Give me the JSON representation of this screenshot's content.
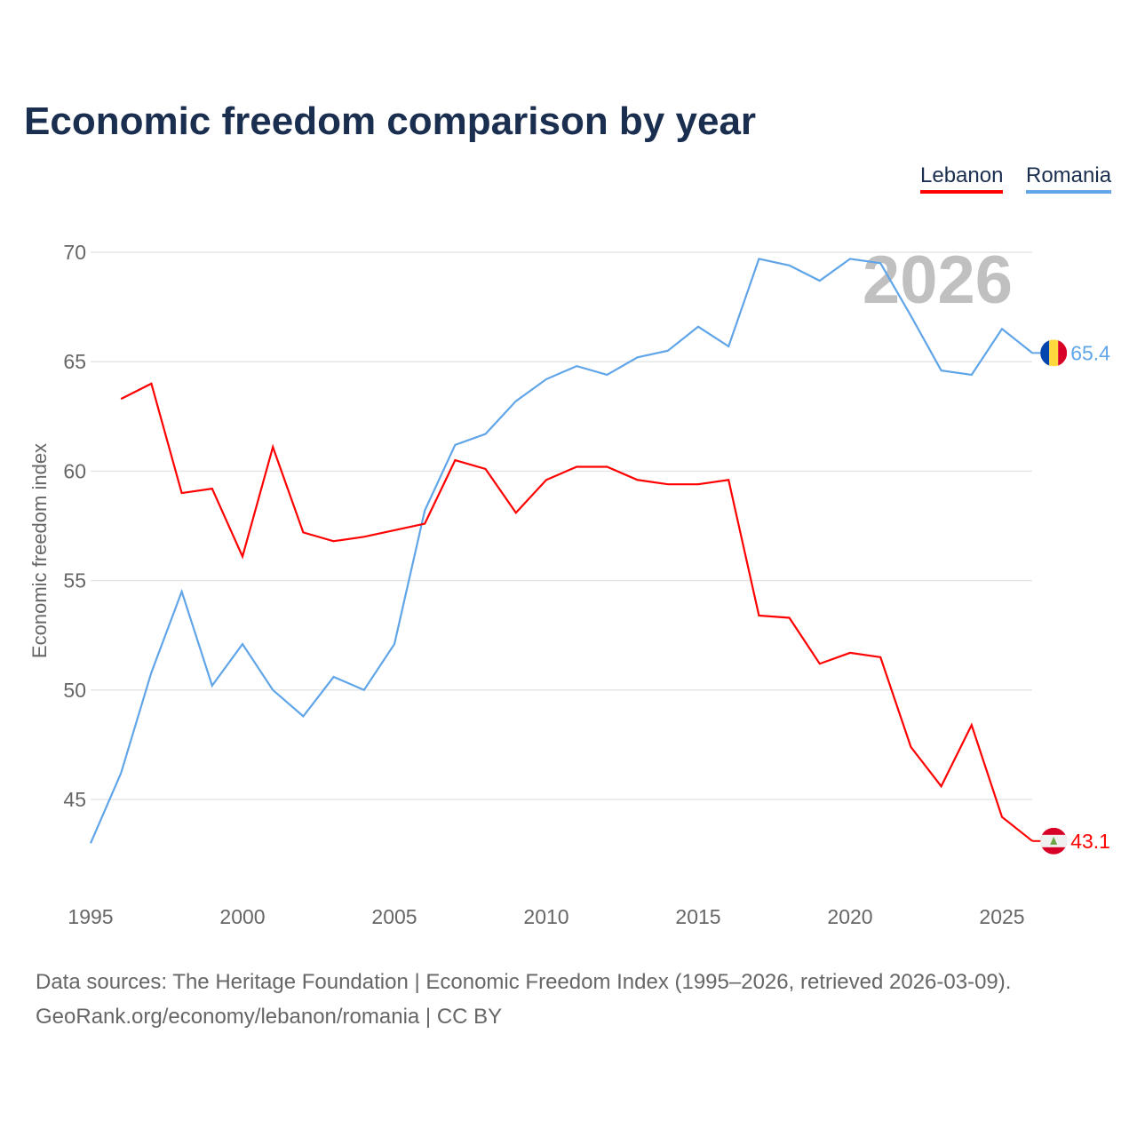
{
  "title": "Economic freedom comparison by year",
  "legend": {
    "lebanon": "Lebanon",
    "romania": "Romania"
  },
  "colors": {
    "lebanon": "#ff0000",
    "romania": "#60a5e8"
  },
  "year_watermark": "2026",
  "source_line1": "Data sources: The Heritage Foundation | Economic Freedom Index (1995–2026, retrieved 2026-03-09).",
  "source_line2": "GeoRank.org/economy/lebanon/romania | CC BY",
  "chart_data": {
    "type": "line",
    "ylabel": "Economic freedom index",
    "xlim": [
      1995,
      2026
    ],
    "ylim": [
      42,
      70
    ],
    "yticks": [
      45,
      50,
      55,
      60,
      65,
      70
    ],
    "xticks": [
      1995,
      2000,
      2005,
      2010,
      2015,
      2020,
      2025
    ],
    "grid": true,
    "legend": "top-right",
    "series": [
      {
        "name": "Romania",
        "end_label": "65.4",
        "x": [
          1995,
          1996,
          1997,
          1998,
          1999,
          2000,
          2001,
          2002,
          2003,
          2004,
          2005,
          2006,
          2007,
          2008,
          2009,
          2010,
          2011,
          2012,
          2013,
          2014,
          2015,
          2016,
          2017,
          2018,
          2019,
          2020,
          2021,
          2022,
          2023,
          2024,
          2025,
          2026
        ],
        "values": [
          43.0,
          46.2,
          50.8,
          54.5,
          50.2,
          52.1,
          50.0,
          48.8,
          50.6,
          50.0,
          52.1,
          58.2,
          61.2,
          61.7,
          63.2,
          64.2,
          64.8,
          64.4,
          65.2,
          65.5,
          66.6,
          65.7,
          69.7,
          69.4,
          68.7,
          69.7,
          69.5,
          67.1,
          64.6,
          64.4,
          66.5,
          65.4
        ]
      },
      {
        "name": "Lebanon",
        "end_label": "43.1",
        "x": [
          1996,
          1997,
          1998,
          1999,
          2000,
          2001,
          2002,
          2003,
          2004,
          2005,
          2006,
          2007,
          2008,
          2009,
          2010,
          2011,
          2012,
          2013,
          2014,
          2015,
          2016,
          2017,
          2018,
          2019,
          2020,
          2021,
          2022,
          2023,
          2024,
          2025,
          2026
        ],
        "values": [
          63.3,
          64.0,
          59.0,
          59.2,
          56.1,
          61.1,
          57.2,
          56.8,
          57.0,
          57.3,
          57.6,
          60.5,
          60.1,
          58.1,
          59.6,
          60.2,
          60.2,
          59.6,
          59.4,
          59.4,
          59.6,
          53.4,
          53.3,
          51.2,
          51.7,
          51.5,
          47.4,
          45.6,
          48.4,
          44.2,
          43.1
        ]
      }
    ]
  }
}
